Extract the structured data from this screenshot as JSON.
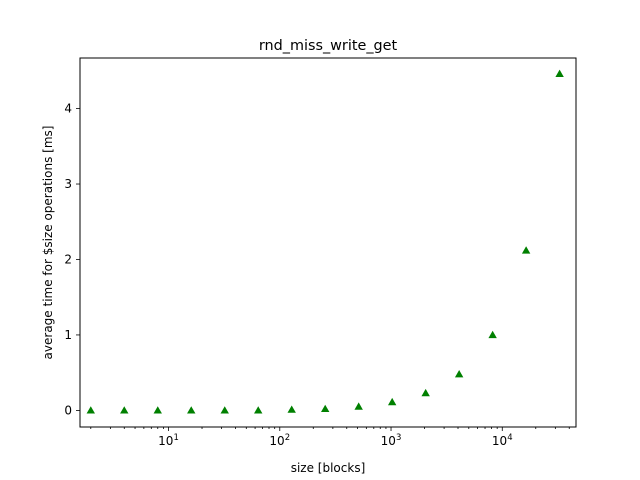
{
  "chart_data": {
    "type": "scatter",
    "title": "rnd_miss_write_get",
    "xlabel": "size [blocks]",
    "ylabel": "average time for $size operations [ms]",
    "xscale": "log",
    "xlim": [
      1.6,
      46000
    ],
    "ylim": [
      -0.22,
      4.67
    ],
    "grid": false,
    "marker": "triangle-up",
    "color": "#008000",
    "x_ticks": [
      {
        "value": 10,
        "base": "10",
        "exp": "1"
      },
      {
        "value": 100,
        "base": "10",
        "exp": "2"
      },
      {
        "value": 1000,
        "base": "10",
        "exp": "3"
      },
      {
        "value": 10000,
        "base": "10",
        "exp": "4"
      }
    ],
    "y_ticks": [
      {
        "value": 0,
        "label": "0"
      },
      {
        "value": 1,
        "label": "1"
      },
      {
        "value": 2,
        "label": "2"
      },
      {
        "value": 3,
        "label": "3"
      },
      {
        "value": 4,
        "label": "4"
      }
    ],
    "x": [
      2,
      4,
      8,
      16,
      32,
      64,
      128,
      256,
      512,
      1024,
      2048,
      4096,
      8192,
      16384,
      32768
    ],
    "y": [
      0.0,
      0.0,
      0.0,
      0.0,
      0.0,
      0.0,
      0.01,
      0.02,
      0.05,
      0.11,
      0.23,
      0.48,
      1.0,
      2.12,
      4.46
    ]
  }
}
